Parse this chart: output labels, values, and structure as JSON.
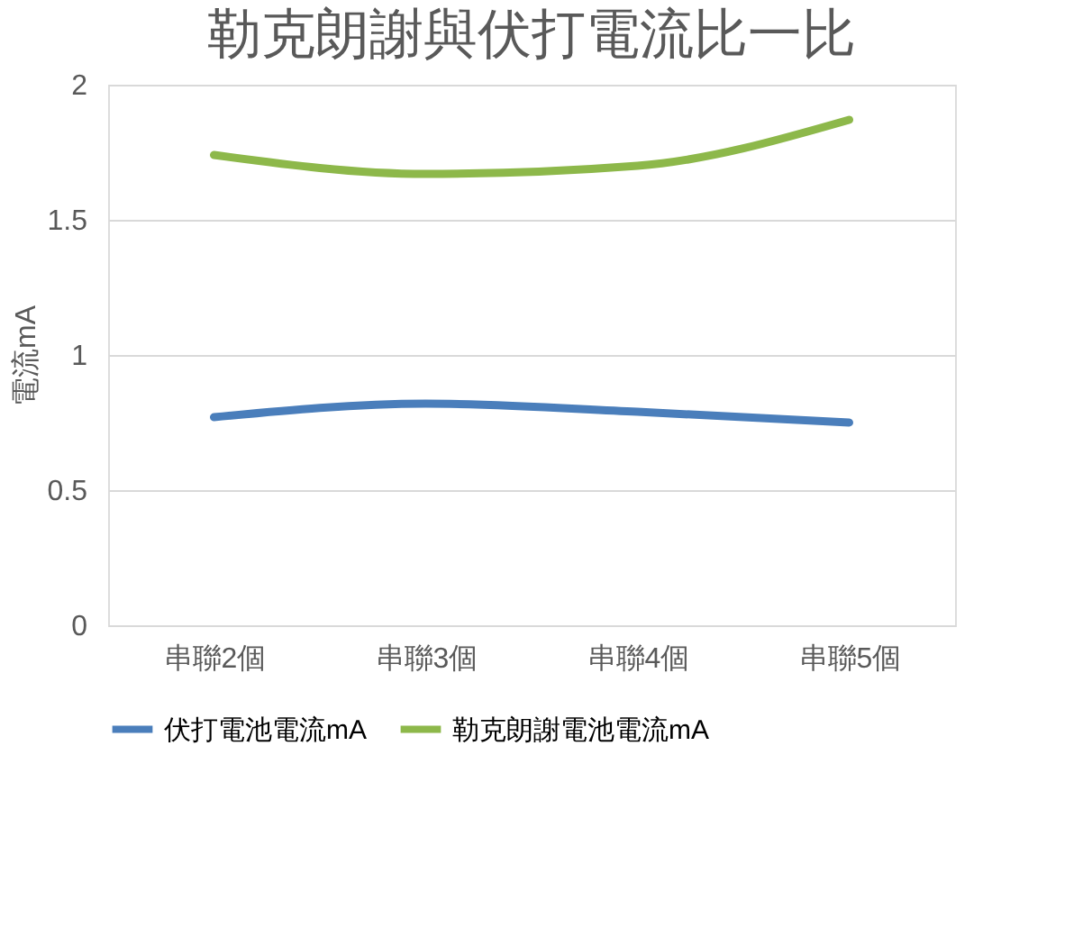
{
  "chart_data": {
    "type": "line",
    "title": "勒克朗謝與伏打電流比一比",
    "ylabel": "電流mA",
    "categories": [
      "串聯2個",
      "串聯3個",
      "串聯4個",
      "串聯5個"
    ],
    "series": [
      {
        "name": "伏打電池電流mA",
        "color": "#4a7ebb",
        "values": [
          0.77,
          0.82,
          0.79,
          0.75
        ]
      },
      {
        "name": "勒克朗謝電池電流mA",
        "color": "#8db84a",
        "values": [
          1.74,
          1.67,
          1.7,
          1.87
        ]
      }
    ],
    "ylim": [
      0,
      2
    ],
    "yticks": [
      0,
      0.5,
      1,
      1.5,
      2
    ],
    "grid": "y",
    "legend": "bottom",
    "marker": "none",
    "line_style": "solid"
  }
}
